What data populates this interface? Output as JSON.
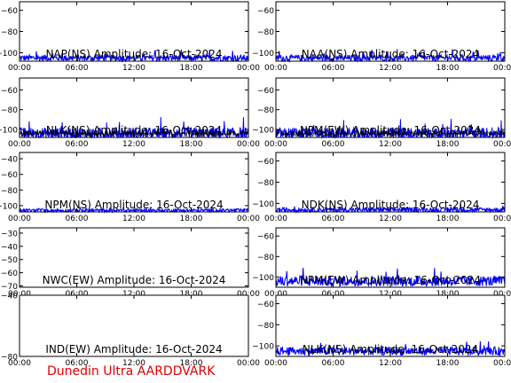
{
  "footer": {
    "text": "Dunedin Ultra AARDDVARK",
    "color": "#dd0000"
  },
  "colors": {
    "trace": "#0000ff",
    "trace_dark": "#000000",
    "frame": "#000000",
    "background": "#ffffff"
  },
  "chart_data": [
    {
      "type": "line",
      "title": "NAP(NS) Amplitude: 16-Oct-2024",
      "yticks": [
        -100,
        -80,
        -60
      ],
      "ylim": [
        -108,
        -52
      ],
      "xticks": [
        "00:00",
        "06:00",
        "12:00",
        "18:00",
        "00:00"
      ],
      "xlim_hours": [
        0,
        24
      ],
      "series": [
        {
          "baseline_db": -105,
          "noise_db": 3,
          "style": "blue"
        }
      ]
    },
    {
      "type": "line",
      "title": "NAA(NS) Amplitude: 16-Oct-2024",
      "yticks": [
        -100,
        -80,
        -60
      ],
      "ylim": [
        -108,
        -52
      ],
      "xticks": [
        "00:00",
        "06:00",
        "12:00",
        "18:00",
        "00:00"
      ],
      "xlim_hours": [
        0,
        24
      ],
      "series": [
        {
          "baseline_db": -105,
          "noise_db": 3,
          "style": "blue"
        }
      ]
    },
    {
      "type": "line",
      "title": "NLK(NS) Amplitude: 16-Oct-2024",
      "yticks": [
        -100,
        -80,
        -60
      ],
      "ylim": [
        -108,
        -48
      ],
      "xticks": [
        "00:00",
        "06:00",
        "12:00",
        "18:00",
        "00:00"
      ],
      "xlim_hours": [
        0,
        24
      ],
      "series": [
        {
          "baseline_db": -104,
          "noise_db": 6,
          "style": "dense"
        }
      ]
    },
    {
      "type": "line",
      "title": "NPM(EW) Amplitude: 16-Oct-2024",
      "yticks": [
        -100,
        -80,
        -60
      ],
      "ylim": [
        -108,
        -48
      ],
      "xticks": [
        "00:00",
        "06:00",
        "12:00",
        "18:00",
        "00:00"
      ],
      "xlim_hours": [
        0,
        24
      ],
      "series": [
        {
          "baseline_db": -104,
          "noise_db": 6,
          "style": "dense"
        }
      ]
    },
    {
      "type": "line",
      "title": "NPM(NS) Amplitude: 16-Oct-2024",
      "yticks": [
        -100,
        -80,
        -60,
        -40
      ],
      "ylim": [
        -108,
        -32
      ],
      "xticks": [
        "00:00",
        "06:00",
        "12:00",
        "18:00",
        "00:00"
      ],
      "xlim_hours": [
        0,
        24
      ],
      "series": [
        {
          "baseline_db": -106,
          "noise_db": 2,
          "style": "blue"
        }
      ]
    },
    {
      "type": "line",
      "title": "NDK(NS) Amplitude: 16-Oct-2024",
      "yticks": [
        -100,
        -80,
        -60
      ],
      "ylim": [
        -108,
        -52
      ],
      "xticks": [
        "00:00",
        "06:00",
        "12:00",
        "18:00",
        "00:00"
      ],
      "xlim_hours": [
        0,
        24
      ],
      "series": [
        {
          "baseline_db": -106,
          "noise_db": 2,
          "style": "blue"
        }
      ]
    },
    {
      "type": "line",
      "title": "NWC(EW) Amplitude: 16-Oct-2024",
      "yticks": [
        -70,
        -60,
        -50,
        -40,
        -30
      ],
      "ylim": [
        -71,
        -26
      ],
      "xticks": [
        "00:00",
        "06:00",
        "12:00",
        "18:00",
        "00:00"
      ],
      "xlim_hours": [
        0,
        24
      ],
      "series": []
    },
    {
      "type": "line",
      "title": "NPM(EW) Amplitude: 16-Oct-2024",
      "yticks": [
        -100,
        -80,
        -60
      ],
      "ylim": [
        -110,
        -52
      ],
      "xticks": [
        "00:00",
        "06:00",
        "12:00",
        "18:00",
        "00:00"
      ],
      "xlim_hours": [
        0,
        24
      ],
      "series": [
        {
          "baseline_db": -104,
          "noise_db": 5,
          "style": "blue"
        }
      ]
    },
    {
      "type": "line",
      "title": "IND(EW) Amplitude: 16-Oct-2024",
      "yticks": [
        -80,
        -40
      ],
      "ylim": [
        -80,
        -40
      ],
      "xticks": [
        "00:00",
        "06:00",
        "12:00",
        "18:00",
        "00:00"
      ],
      "xlim_hours": [
        0,
        24
      ],
      "series": []
    },
    {
      "type": "line",
      "title": "NLK(NS) Amplitude: 16-Oct-2024",
      "yticks": [
        -100,
        -80,
        -60
      ],
      "ylim": [
        -110,
        -52
      ],
      "xticks": [
        "00:00",
        "06:00",
        "12:00",
        "18:00",
        "00:00"
      ],
      "xlim_hours": [
        0,
        24
      ],
      "series": [
        {
          "baseline_db": -105,
          "noise_db": 4,
          "style": "blue"
        }
      ]
    }
  ]
}
